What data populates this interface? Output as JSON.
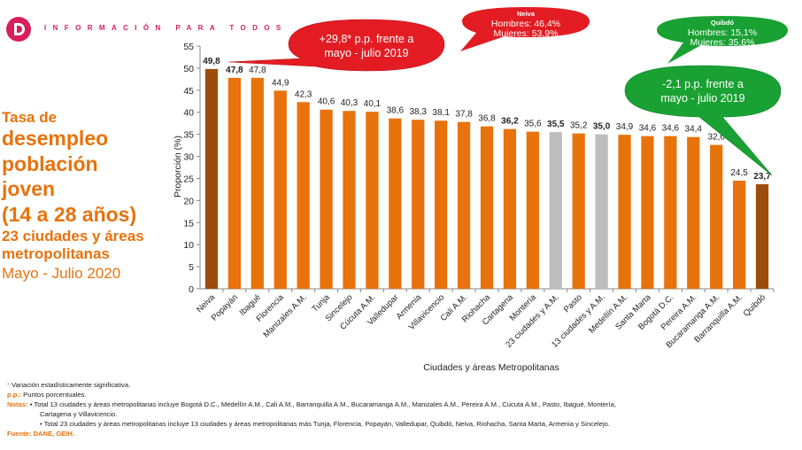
{
  "header": {
    "brand": "INFORMACIÓN PARA TODOS"
  },
  "title": {
    "line1": "Tasa de",
    "line2": "desempleo",
    "line3": "población",
    "line4": "joven",
    "line5": "(14 a 28 años)",
    "line6": "23 ciudades y áreas",
    "line7": "metropolitanas",
    "line8": "Mayo - Julio 2020"
  },
  "colors": {
    "orange": "#e8720c",
    "dark": "#9c4d0c",
    "gray": "#bdbdbd",
    "red": "#e31c23",
    "green": "#1aa133"
  },
  "chart_data": {
    "type": "bar",
    "ylabel": "Proporción (%)",
    "xlabel": "Ciudades y áreas Metropolitanas",
    "ylim": [
      0,
      55
    ],
    "yticks": [
      0,
      5,
      10,
      15,
      20,
      25,
      30,
      35,
      40,
      45,
      50,
      55
    ],
    "categories": [
      "Neiva",
      "Popayán",
      "Ibagué",
      "Florencia",
      "Manizales A.M.",
      "Tunja",
      "Sincelejo",
      "Cúcuta A.M.",
      "Valledupar",
      "Armenia",
      "Villavicencio",
      "Cali A.M.",
      "Riohacha",
      "Cartagena",
      "Montería",
      "23 ciudades y A.M.",
      "Pasto",
      "13 ciudades y A.M.",
      "Medellín A.M.",
      "Santa Marta",
      "Bogotá D.C.",
      "Pereira A.M.",
      "Bucaramanga A.M.",
      "Barranquilla A.M.",
      "Quibdó"
    ],
    "values": [
      49.8,
      47.8,
      47.8,
      44.9,
      42.3,
      40.6,
      40.3,
      40.1,
      38.6,
      38.3,
      38.1,
      37.8,
      36.8,
      36.2,
      35.6,
      35.5,
      35.2,
      35.0,
      34.9,
      34.6,
      34.6,
      34.4,
      32.6,
      24.5,
      23.7
    ],
    "value_labels": [
      "49,8",
      "47,8",
      "47,8",
      "44,9",
      "42,3",
      "40,6",
      "40,3",
      "40,1",
      "38,6",
      "38,3",
      "38,1",
      "37,8",
      "36,8",
      "36,2",
      "35,6",
      "35,5",
      "35,2",
      "35,0",
      "34,9",
      "34,6",
      "34,6",
      "34,4",
      "32,6",
      "24,5",
      "23,7"
    ],
    "bar_color_keys": [
      "dark",
      "orange",
      "orange",
      "orange",
      "orange",
      "orange",
      "orange",
      "orange",
      "orange",
      "orange",
      "orange",
      "orange",
      "orange",
      "orange",
      "orange",
      "gray",
      "orange",
      "gray",
      "orange",
      "orange",
      "orange",
      "orange",
      "orange",
      "orange",
      "dark"
    ],
    "bold_labels": [
      true,
      true,
      false,
      false,
      false,
      false,
      false,
      false,
      false,
      false,
      false,
      false,
      false,
      true,
      false,
      true,
      false,
      true,
      false,
      false,
      false,
      false,
      false,
      false,
      true
    ],
    "grid": false
  },
  "callouts": {
    "neiva_small_title": "Neiva",
    "neiva_small_l1": "Hombres: 46,4%",
    "neiva_small_l2": "Mujeres: 53,9%",
    "neiva_big_l1": "+29,8* p.p. frente a",
    "neiva_big_l2": "mayo - julio 2019",
    "quibdo_small_title": "Quibdó",
    "quibdo_small_l1": "Hombres: 15,1%",
    "quibdo_small_l2": "Mujeres: 35,6%",
    "quibdo_big_l1": "-2,1 p.p. frente a",
    "quibdo_big_l2": "mayo - julio 2019"
  },
  "footnotes": {
    "star_mark": "*",
    "star_text": "Variación estadísticamente significativa.",
    "pp_key": "p.p.:",
    "pp_text": "Puntos porcentuales.",
    "notes_key": "Notas:",
    "note1": "• Total 13 ciudades y áreas metropolitanas incluye Bogotá D.C., Medellín A.M., Cali A.M., Barranquilla A.M., Bucaramanga A.M., Manizales A.M., Pereira A.M., Cúcuta A.M., Pasto, Ibagué, Montería,",
    "note1b": "Cartagena y Villavicencio.",
    "note2": "• Total 23 ciudades y áreas metropolitanas incluye 13 ciudades y áreas metropolitanas más Tunja, Florencia, Popayán, Valledupar, Quibdó, Neiva, Riohacha, Santa Marta, Armenia y Sincelejo.",
    "source": "Fuente: DANE, GEIH."
  }
}
